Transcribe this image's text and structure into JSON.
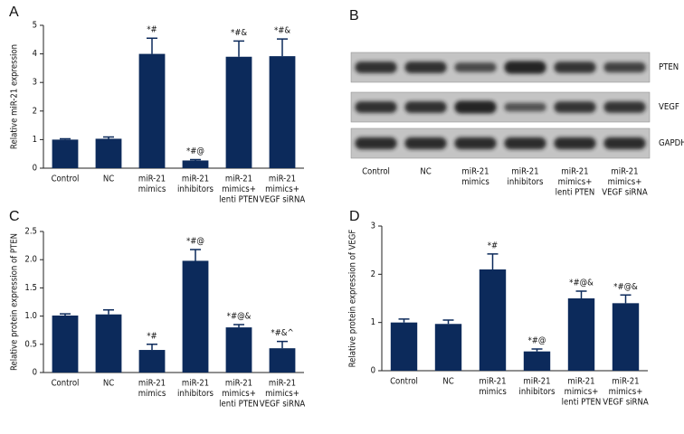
{
  "chart_data": [
    {
      "type": "bar",
      "panel_label": "A",
      "ylabel": "Relative miR-21 expression",
      "categories": [
        [
          "Control"
        ],
        [
          "NC"
        ],
        [
          "miR-21",
          "mimics"
        ],
        [
          "miR-21",
          "inhibitors"
        ],
        [
          "miR-21",
          "mimics+",
          "lenti PTEN"
        ],
        [
          "miR-21",
          "mimics+",
          "VEGF siRNA"
        ]
      ],
      "values": [
        1.0,
        1.03,
        4.0,
        0.27,
        3.9,
        3.92
      ],
      "errors": [
        0.03,
        0.06,
        0.55,
        0.03,
        0.55,
        0.6
      ],
      "annotations": [
        null,
        null,
        "*#",
        "*#@",
        "*#&",
        "*#&"
      ],
      "color": "#0c2a5b",
      "ylim": [
        0,
        5
      ],
      "yticks": [
        0,
        1,
        2,
        3,
        4,
        5
      ]
    },
    {
      "type": "bar",
      "panel_label": "C",
      "ylabel": "Relative protein expression of PTEN",
      "categories": [
        [
          "Control"
        ],
        [
          "NC"
        ],
        [
          "miR-21",
          "mimics"
        ],
        [
          "miR-21",
          "inhibitors"
        ],
        [
          "miR-21",
          "mimics+",
          "lenti PTEN"
        ],
        [
          "miR-21",
          "mimics+",
          "VEGF siRNA"
        ]
      ],
      "values": [
        1.01,
        1.03,
        0.4,
        1.98,
        0.8,
        0.43
      ],
      "errors": [
        0.03,
        0.08,
        0.1,
        0.2,
        0.05,
        0.12
      ],
      "annotations": [
        null,
        null,
        "*#",
        "*#@",
        "*#@&",
        "*#&^"
      ],
      "color": "#0c2a5b",
      "ylim": [
        0,
        2.5
      ],
      "yticks": [
        0,
        0.5,
        {
          "value": 1,
          "label": "1.0"
        },
        1.5,
        {
          "value": 2,
          "label": "2.0"
        },
        2.5
      ]
    },
    {
      "type": "bar",
      "panel_label": "D",
      "ylabel": "Relative protein expression of VEGF",
      "categories": [
        [
          "Control"
        ],
        [
          "NC"
        ],
        [
          "miR-21",
          "mimics"
        ],
        [
          "miR-21",
          "inhibitors"
        ],
        [
          "miR-21",
          "mimics+",
          "lenti PTEN"
        ],
        [
          "miR-21",
          "mimics+",
          "VEGF siRNA"
        ]
      ],
      "values": [
        1.0,
        0.97,
        2.1,
        0.4,
        1.5,
        1.4
      ],
      "errors": [
        0.07,
        0.08,
        0.32,
        0.05,
        0.15,
        0.17
      ],
      "annotations": [
        null,
        null,
        "*#",
        "*#@",
        "*#@&",
        "*#@&"
      ],
      "color": "#0c2a5b",
      "ylim": [
        0,
        3
      ],
      "yticks": [
        0,
        1,
        2,
        3
      ]
    }
  ],
  "blot": {
    "panel_label": "B",
    "rows": [
      "PTEN",
      "VEGF",
      "GAPDH"
    ],
    "categories": [
      [
        "Control"
      ],
      [
        "NC"
      ],
      [
        "miR-21",
        "mimics"
      ],
      [
        "miR-21",
        "inhibitors"
      ],
      [
        "miR-21",
        "mimics+",
        "lenti PTEN"
      ],
      [
        "miR-21",
        "mimics+",
        "VEGF siRNA"
      ]
    ]
  }
}
